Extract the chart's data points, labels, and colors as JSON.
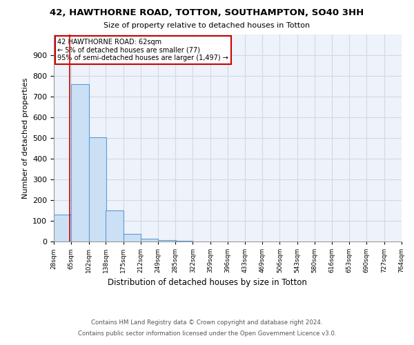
{
  "title1": "42, HAWTHORNE ROAD, TOTTON, SOUTHAMPTON, SO40 3HH",
  "title2": "Size of property relative to detached houses in Totton",
  "xlabel": "Distribution of detached houses by size in Totton",
  "ylabel": "Number of detached properties",
  "footnote1": "Contains HM Land Registry data © Crown copyright and database right 2024.",
  "footnote2": "Contains public sector information licensed under the Open Government Licence v3.0.",
  "bin_edges": [
    28,
    65,
    102,
    138,
    175,
    212,
    249,
    285,
    322,
    359,
    396,
    433,
    469,
    506,
    543,
    580,
    616,
    653,
    690,
    727,
    764
  ],
  "bar_heights": [
    130,
    760,
    505,
    150,
    38,
    13,
    8,
    5,
    0,
    0,
    0,
    0,
    0,
    0,
    0,
    0,
    0,
    0,
    0,
    0
  ],
  "bar_color": "#cce0f5",
  "bar_edgecolor": "#5b9bd5",
  "property_size": 62,
  "property_line_color": "#cc0000",
  "annotation_line1": "42 HAWTHORNE ROAD: 62sqm",
  "annotation_line2": "← 5% of detached houses are smaller (77)",
  "annotation_line3": "95% of semi-detached houses are larger (1,497) →",
  "annotation_box_color": "#cc0000",
  "ylim": [
    0,
    1000
  ],
  "yticks": [
    0,
    100,
    200,
    300,
    400,
    500,
    600,
    700,
    800,
    900,
    1000
  ],
  "grid_color": "#d0d8e8",
  "background_color": "#eef2fa"
}
